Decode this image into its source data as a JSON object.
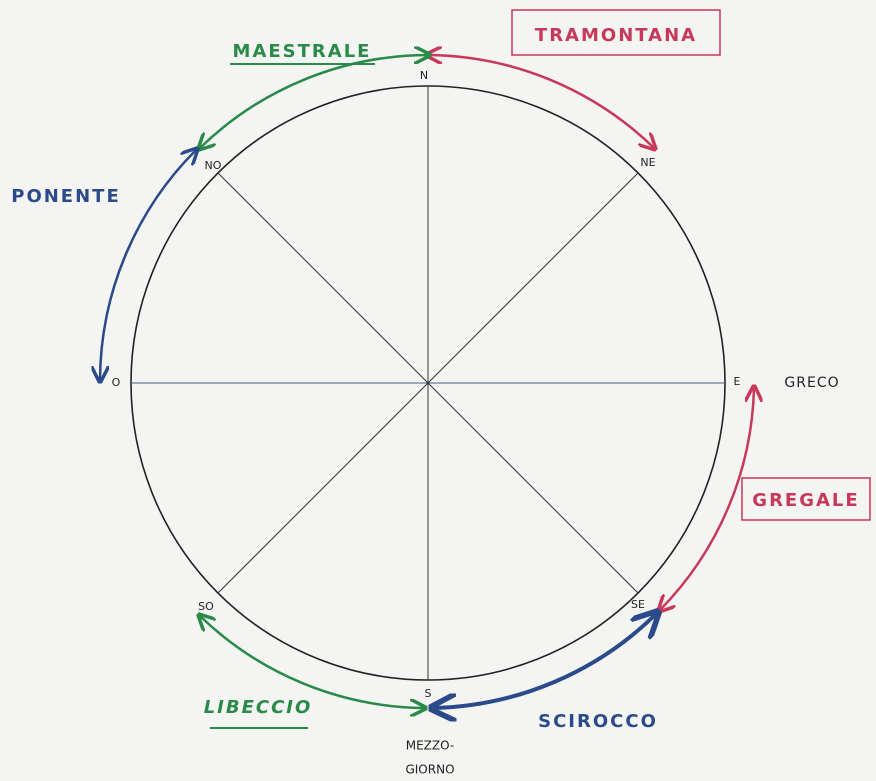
{
  "points": [
    "N",
    "NE",
    "E",
    "SE",
    "S",
    "SO",
    "O",
    "NO"
  ],
  "winds": [
    "TRAMONTANA",
    "MAESTRALE",
    "PONENTE",
    "GREGALE",
    "SCIROCCO",
    "LIBECCIO"
  ],
  "greco": "GRECO",
  "mezzogiorno": [
    "MEZZO-",
    "GIORNO"
  ]
}
